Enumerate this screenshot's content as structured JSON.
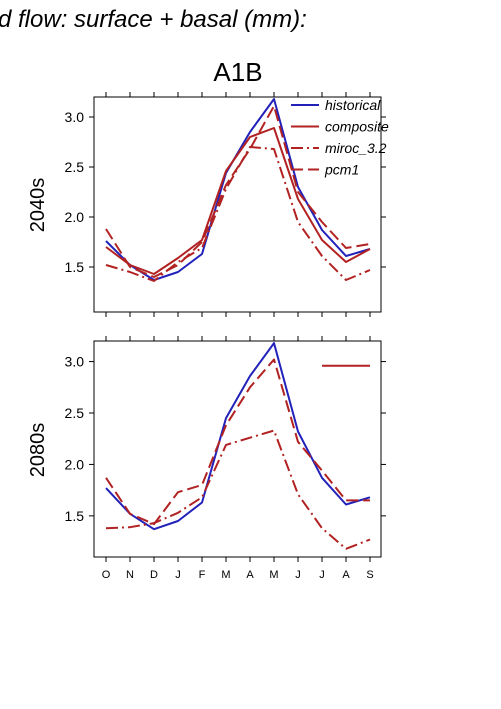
{
  "figure": {
    "title_fragment": "d flow: surface + basal (mm):",
    "scenario": "A1B"
  },
  "legend": [
    {
      "label": "historical",
      "color": "#2222bb",
      "dash": "solid"
    },
    {
      "label": "composite",
      "color": "#b22222",
      "dash": "solid"
    },
    {
      "label": "miroc_3.2",
      "color": "#b22222",
      "dash": "dashdot"
    },
    {
      "label": "pcm1",
      "color": "#b22222",
      "dash": "dashed"
    }
  ],
  "chart_data": [
    {
      "type": "line",
      "ylabel": "2040s",
      "ylim": [
        1.05,
        3.2
      ],
      "yticks": [
        "1.5",
        "2.0",
        "2.5",
        "3.0"
      ],
      "yticks_values": [
        1.5,
        2.0,
        2.5,
        3.0
      ],
      "categories": [
        "O",
        "N",
        "D",
        "J",
        "F",
        "M",
        "A",
        "M",
        "J",
        "J",
        "A",
        "S"
      ],
      "show_x_tick_labels": false,
      "series": [
        {
          "name": "historical",
          "values": [
            1.76,
            1.52,
            1.37,
            1.45,
            1.63,
            2.44,
            2.85,
            3.18,
            2.3,
            1.87,
            1.61,
            1.68
          ]
        },
        {
          "name": "composite",
          "values": [
            1.7,
            1.52,
            1.43,
            1.59,
            1.77,
            2.46,
            2.8,
            2.89,
            2.18,
            1.77,
            1.55,
            1.68
          ]
        },
        {
          "name": "miroc_3.2",
          "values": [
            1.52,
            1.45,
            1.36,
            1.55,
            1.69,
            2.28,
            2.7,
            2.68,
            1.95,
            1.61,
            1.37,
            1.47
          ]
        },
        {
          "name": "pcm1",
          "values": [
            1.88,
            1.5,
            1.4,
            1.52,
            1.75,
            2.32,
            2.68,
            3.11,
            2.25,
            1.95,
            1.69,
            1.73
          ]
        }
      ]
    },
    {
      "type": "line",
      "ylabel": "2080s",
      "ylim": [
        1.1,
        3.2
      ],
      "yticks": [
        "1.5",
        "2.0",
        "2.5",
        "3.0"
      ],
      "yticks_values": [
        1.5,
        2.0,
        2.5,
        3.0
      ],
      "categories": [
        "O",
        "N",
        "D",
        "J",
        "F",
        "M",
        "A",
        "M",
        "J",
        "J",
        "A",
        "S"
      ],
      "show_x_tick_labels": true,
      "series": [
        {
          "name": "historical",
          "values": [
            1.77,
            1.52,
            1.37,
            1.45,
            1.63,
            2.45,
            2.86,
            3.18,
            2.32,
            1.87,
            1.61,
            1.68
          ]
        },
        {
          "name": "composite",
          "values": [
            null,
            null,
            null,
            null,
            null,
            null,
            null,
            null,
            null,
            2.96,
            2.96,
            2.96
          ]
        },
        {
          "name": "miroc_3.2",
          "values": [
            1.38,
            1.39,
            1.43,
            1.53,
            1.68,
            2.19,
            2.26,
            2.33,
            1.71,
            1.38,
            1.18,
            1.27
          ]
        },
        {
          "name": "pcm1",
          "values": [
            1.87,
            1.52,
            1.42,
            1.73,
            1.8,
            2.38,
            2.75,
            3.02,
            2.22,
            1.94,
            1.65,
            1.65
          ]
        }
      ]
    }
  ]
}
